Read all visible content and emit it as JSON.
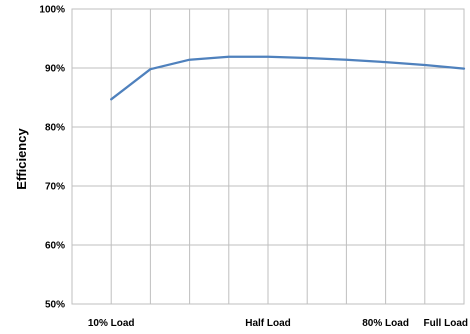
{
  "chart_data": {
    "type": "line",
    "title": "",
    "xlabel": "",
    "ylabel": "Efficiency",
    "ylim": [
      50,
      100
    ],
    "y_ticks": [
      "50%",
      "60%",
      "70%",
      "80%",
      "90%",
      "100%"
    ],
    "x_tick_labels": [
      "10% Load",
      "Half Load",
      "80% Load",
      "Full Load"
    ],
    "x_tick_positions": [
      10,
      50,
      80,
      100
    ],
    "xlim": [
      0,
      100
    ],
    "grid": true,
    "legend": "none",
    "series": [
      {
        "color": "#4f81bd",
        "x": [
          10,
          20,
          30,
          40,
          50,
          60,
          70,
          80,
          90,
          100
        ],
        "y": [
          84.7,
          89.8,
          91.4,
          91.9,
          91.9,
          91.7,
          91.4,
          91.0,
          90.5,
          89.9
        ]
      }
    ]
  }
}
